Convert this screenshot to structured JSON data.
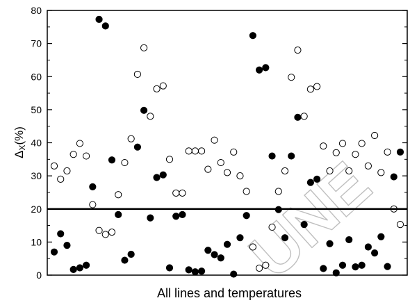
{
  "chart_data": {
    "type": "scatter",
    "xlabel": "All lines and temperatures",
    "ylabel_main": "Δ",
    "ylabel_sub": "X",
    "ylabel_unit": "(%)",
    "ylim": [
      0,
      80
    ],
    "yticks": [
      0,
      10,
      20,
      30,
      40,
      50,
      60,
      70,
      80
    ],
    "x_ticks_labeled": false,
    "reference_line_y": 20,
    "grid": false,
    "watermark_text": "UNE",
    "colors": {
      "axis": "#000000",
      "filled_marker": "#000000",
      "open_marker_fill": "#ffffff",
      "watermark": "#bfbfbf"
    },
    "series": [
      {
        "marker": "filled-circle",
        "points": [
          [
            1,
            7
          ],
          [
            2,
            12.5
          ],
          [
            3,
            9
          ],
          [
            4,
            1.7
          ],
          [
            5,
            2.2
          ],
          [
            6,
            3
          ],
          [
            7,
            26.7
          ],
          [
            8,
            77.3
          ],
          [
            9,
            75.3
          ],
          [
            10,
            34.8
          ],
          [
            11,
            18.3
          ],
          [
            12,
            4.5
          ],
          [
            13,
            6.3
          ],
          [
            14,
            38.7
          ],
          [
            15,
            49.8
          ],
          [
            16,
            17.3
          ],
          [
            17,
            29.5
          ],
          [
            18,
            30.3
          ],
          [
            19,
            2.2
          ],
          [
            20,
            17.8
          ],
          [
            21,
            18.3
          ],
          [
            22,
            1.6
          ],
          [
            23,
            1
          ],
          [
            24,
            1.2
          ],
          [
            25,
            7.5
          ],
          [
            26,
            6.2
          ],
          [
            27,
            5.2
          ],
          [
            28,
            9.3
          ],
          [
            29,
            0.3
          ],
          [
            30,
            11.3
          ],
          [
            31,
            18
          ],
          [
            32,
            72.4
          ],
          [
            33,
            62
          ],
          [
            34,
            62.7
          ],
          [
            35,
            36
          ],
          [
            36,
            19.8
          ],
          [
            37,
            11.3
          ],
          [
            38,
            36
          ],
          [
            39,
            47.7
          ],
          [
            40,
            15.3
          ],
          [
            41,
            28
          ],
          [
            42,
            29
          ],
          [
            43,
            2
          ],
          [
            44,
            9.5
          ],
          [
            45,
            0.7
          ],
          [
            46,
            3
          ],
          [
            47,
            10.7
          ],
          [
            48,
            2.5
          ],
          [
            49,
            3
          ],
          [
            50,
            8.5
          ],
          [
            51,
            6.7
          ],
          [
            52,
            11.6
          ],
          [
            53,
            2.6
          ],
          [
            54,
            29.7
          ],
          [
            55,
            37.2
          ]
        ]
      },
      {
        "marker": "open-circle",
        "points": [
          [
            1,
            33
          ],
          [
            2,
            29
          ],
          [
            3,
            31.5
          ],
          [
            4,
            36.5
          ],
          [
            5,
            39.8
          ],
          [
            6,
            36
          ],
          [
            7,
            21.3
          ],
          [
            8,
            13.5
          ],
          [
            9,
            12.3
          ],
          [
            10,
            13
          ],
          [
            11,
            24.3
          ],
          [
            12,
            34
          ],
          [
            13,
            41.2
          ],
          [
            14,
            60.7
          ],
          [
            15,
            68.7
          ],
          [
            16,
            48
          ],
          [
            17,
            56.3
          ],
          [
            18,
            57.2
          ],
          [
            19,
            35
          ],
          [
            20,
            24.8
          ],
          [
            21,
            24.8
          ],
          [
            22,
            37.5
          ],
          [
            23,
            37.5
          ],
          [
            24,
            37.5
          ],
          [
            25,
            32
          ],
          [
            26,
            40.8
          ],
          [
            27,
            34
          ],
          [
            28,
            31
          ],
          [
            29,
            37.2
          ],
          [
            30,
            30
          ],
          [
            31,
            25.3
          ],
          [
            32,
            8.5
          ],
          [
            33,
            2.1
          ],
          [
            34,
            3
          ],
          [
            35,
            14.5
          ],
          [
            36,
            25.3
          ],
          [
            37,
            31.5
          ],
          [
            38,
            59.8
          ],
          [
            39,
            68
          ],
          [
            40,
            48
          ],
          [
            41,
            56.2
          ],
          [
            42,
            57
          ],
          [
            43,
            39
          ],
          [
            44,
            31.5
          ],
          [
            45,
            37
          ],
          [
            46,
            39.8
          ],
          [
            47,
            31.5
          ],
          [
            48,
            36.5
          ],
          [
            49,
            39.8
          ],
          [
            50,
            33
          ],
          [
            51,
            42.2
          ],
          [
            52,
            31
          ],
          [
            53,
            37.2
          ],
          [
            54,
            20
          ],
          [
            55,
            15.3
          ]
        ]
      }
    ]
  }
}
